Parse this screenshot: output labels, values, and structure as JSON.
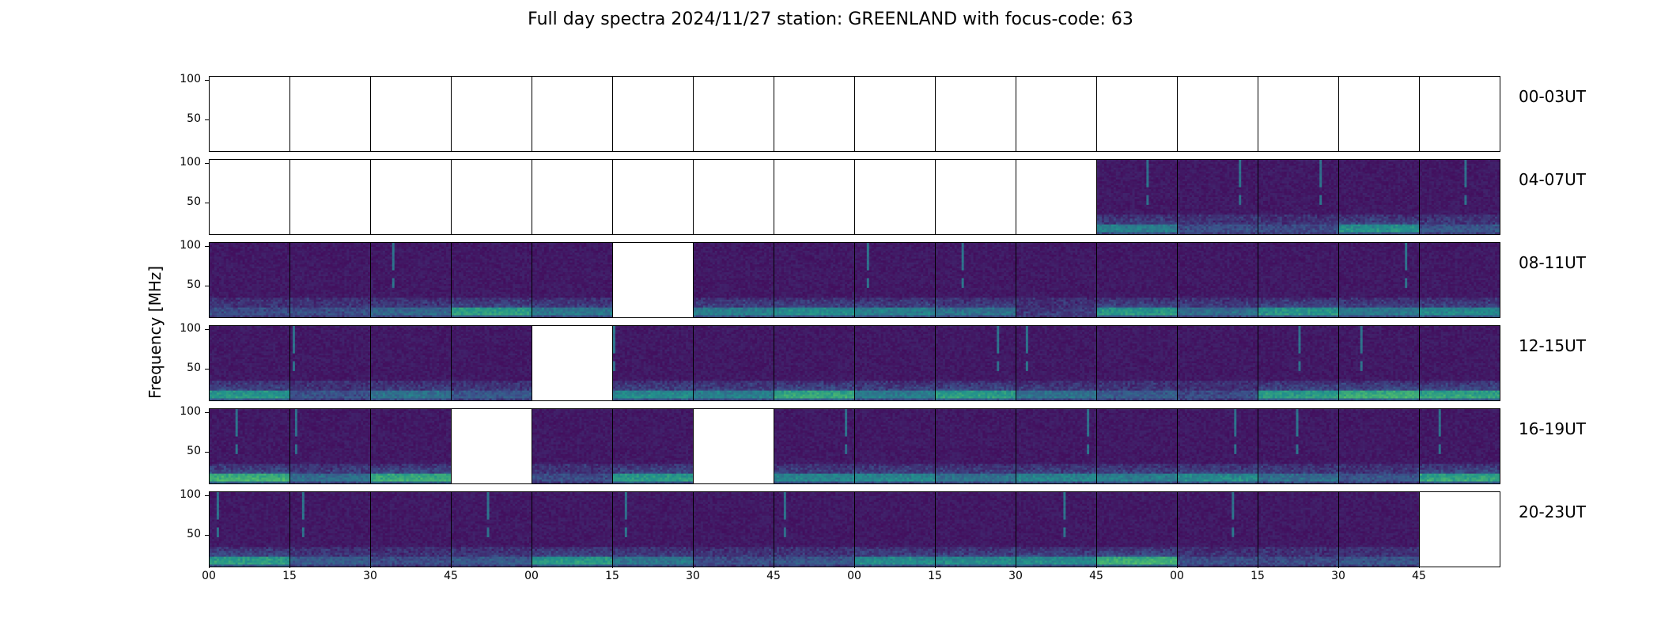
{
  "title": "Full day spectra 2024/11/27 station: GREENLAND with focus-code: 63",
  "chart_data": {
    "type": "heatmap",
    "colormap": "viridis",
    "ylabel": "Frequency [MHz]",
    "y_ticks": [
      "100",
      "50"
    ],
    "ylim": [
      10,
      105
    ],
    "x_ticks": [
      "00",
      "15",
      "30",
      "45",
      "00",
      "15",
      "30",
      "45",
      "00",
      "15",
      "30",
      "45",
      "00",
      "15",
      "30",
      "45"
    ],
    "rows": [
      {
        "label": "00-03UT",
        "panels": [
          "empty",
          "empty",
          "empty",
          "empty",
          "empty",
          "empty",
          "empty",
          "empty",
          "empty",
          "empty",
          "empty",
          "empty",
          "empty",
          "empty",
          "empty",
          "empty"
        ]
      },
      {
        "label": "04-07UT",
        "panels": [
          "empty",
          "empty",
          "empty",
          "empty",
          "empty",
          "empty",
          "empty",
          "empty",
          "empty",
          "empty",
          "empty",
          "data",
          "data",
          "data",
          "data",
          "data"
        ]
      },
      {
        "label": "08-11UT",
        "panels": [
          "data",
          "data",
          "data",
          "data",
          "data",
          "empty",
          "data",
          "data",
          "data",
          "data",
          "data",
          "data",
          "data",
          "data",
          "data",
          "data"
        ]
      },
      {
        "label": "12-15UT",
        "panels": [
          "data",
          "data",
          "data",
          "data",
          "empty",
          "data",
          "data",
          "data",
          "data",
          "data",
          "data",
          "data",
          "data",
          "data",
          "data",
          "data"
        ]
      },
      {
        "label": "16-19UT",
        "panels": [
          "data",
          "data",
          "data",
          "empty",
          "data",
          "data",
          "empty",
          "data",
          "data",
          "data",
          "data",
          "data",
          "data",
          "data",
          "data",
          "data"
        ]
      },
      {
        "label": "20-23UT",
        "panels": [
          "data",
          "data",
          "data",
          "data",
          "data",
          "data",
          "data",
          "data",
          "data",
          "data",
          "data",
          "data",
          "data",
          "data",
          "data",
          "empty"
        ]
      }
    ]
  }
}
